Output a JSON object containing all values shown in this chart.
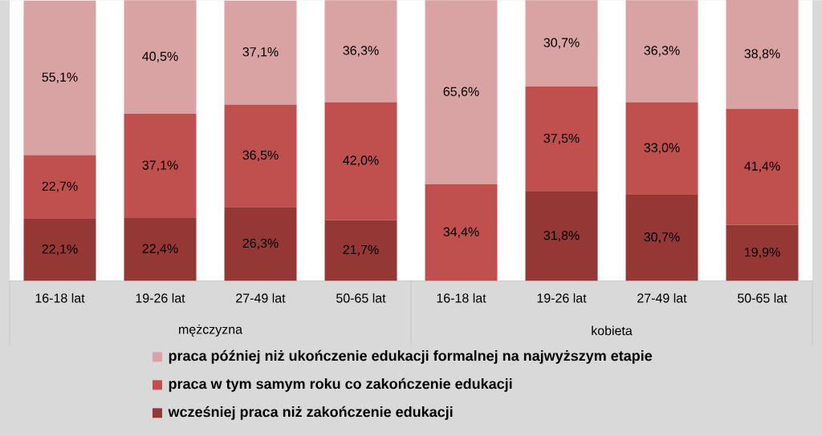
{
  "chart_data": {
    "type": "bar",
    "stacked": true,
    "categories": [
      "16-18 lat",
      "19-26 lat",
      "27-49 lat",
      "50-65 lat",
      "16-18 lat",
      "19-26 lat",
      "27-49 lat",
      "50-65 lat"
    ],
    "annotations": [
      "mężczyzna",
      "kobieta"
    ],
    "series": [
      {
        "name": "wcześniej praca niż zakończenie edukacji",
        "color": "#953735",
        "values": [
          22.1,
          22.4,
          26.3,
          21.7,
          null,
          31.8,
          30.7,
          19.9
        ],
        "value_labels": [
          "22,1%",
          "22,4%",
          "26,3%",
          "21,7%",
          null,
          "31,8%",
          "30,7%",
          "19,9%"
        ]
      },
      {
        "name": "praca w tym samym roku co zakończenie edukacji",
        "color": "#c0504d",
        "values": [
          22.7,
          37.1,
          36.5,
          42.0,
          34.4,
          37.5,
          33.0,
          41.4
        ],
        "value_labels": [
          "22,7%",
          "37,1%",
          "36,5%",
          "42,0%",
          "34,4%",
          "37,5%",
          "33,0%",
          "41,4%"
        ]
      },
      {
        "name": "praca później niż ukończenie edukacji formalnej na najwyższym etapie",
        "color": "#d9a3a3",
        "values": [
          55.1,
          40.5,
          37.1,
          36.3,
          65.6,
          30.7,
          36.3,
          38.8
        ],
        "value_labels": [
          "55,1%",
          "40,5%",
          "37,1%",
          "36,3%",
          "65,6%",
          "30,7%",
          "36,3%",
          "38,8%"
        ]
      }
    ],
    "ylim": [
      0,
      100
    ],
    "tick_labels": "x",
    "legend": "bottom"
  }
}
